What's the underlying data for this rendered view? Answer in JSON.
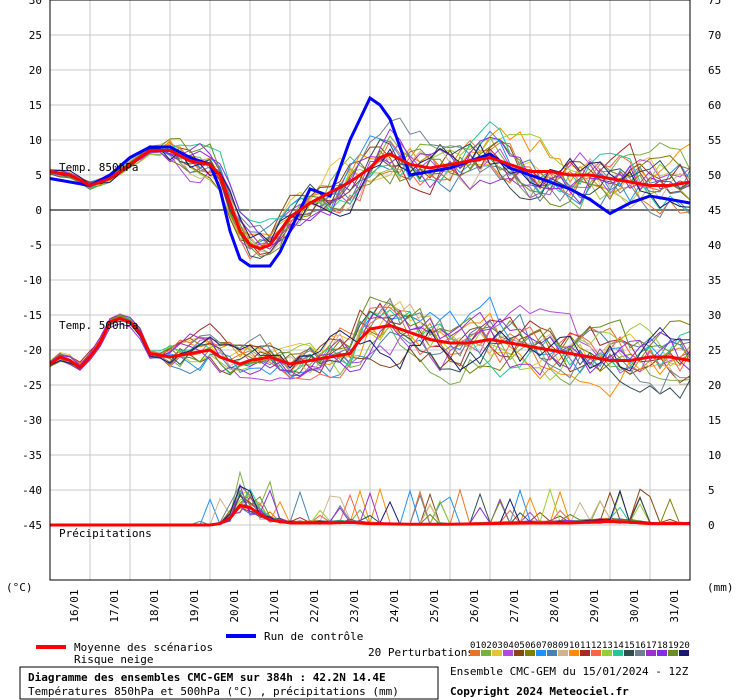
{
  "chart_data": {
    "type": "line",
    "title": "Diagramme des ensembles CMC-GEM sur 384h : 42.2N 14.4E",
    "subtitle": "Températures 850hPa et 500hPa (°C) , précipitations (mm)",
    "credit_line1": "Ensemble CMC-GEM du 15/01/2024 - 12Z",
    "credit_line2": "Copyright 2024 Meteociel.fr",
    "left_axis_unit": "(°C)",
    "right_axis_unit": "(mm)",
    "left_ticks": [
      30,
      25,
      20,
      15,
      10,
      5,
      0,
      -5,
      -10,
      -15,
      -20,
      -25,
      -30,
      -35,
      -40,
      -45
    ],
    "right_ticks": [
      75,
      70,
      65,
      60,
      55,
      50,
      45,
      40,
      35,
      30,
      25,
      20,
      15,
      10,
      5,
      0
    ],
    "ylim": [
      -45,
      30
    ],
    "x_days": [
      "16/01",
      "17/01",
      "18/01",
      "19/01",
      "20/01",
      "21/01",
      "22/01",
      "23/01",
      "24/01",
      "25/01",
      "26/01",
      "27/01",
      "28/01",
      "29/01",
      "30/01",
      "31/01"
    ],
    "x_hours_range": [
      0,
      384
    ],
    "section_labels": {
      "t850": "Temp. 850hPa",
      "t500": "Temp. 500hPa",
      "precip": "Précipitations"
    },
    "legend": {
      "mean": "Moyenne des scénarios",
      "snow_risk": "Risque neige",
      "control": "Run de contrôle",
      "perturbations": "20 Perturbations"
    },
    "perturbation_numbers": [
      "01",
      "02",
      "03",
      "04",
      "05",
      "06",
      "07",
      "08",
      "09",
      "10",
      "11",
      "12",
      "13",
      "14",
      "15",
      "16",
      "17",
      "18",
      "19",
      "20"
    ],
    "perturbation_colors": [
      "#e8732a",
      "#76b043",
      "#e8c23a",
      "#b04ae0",
      "#8b4513",
      "#808000",
      "#1e90ff",
      "#4682b4",
      "#d2b48c",
      "#ff8c00",
      "#a52a2a",
      "#ff6347",
      "#9acd32",
      "#20c997",
      "#2f4f4f",
      "#708090",
      "#9932cc",
      "#8a2be2",
      "#6b8e23",
      "#191970"
    ],
    "mean_color": "#ff0000",
    "control_color": "#0000ff",
    "series": [
      {
        "name": "Moyenne des scénarios",
        "t850": [
          [
            0,
            5.5
          ],
          [
            12,
            5
          ],
          [
            24,
            3.5
          ],
          [
            36,
            4.5
          ],
          [
            48,
            6.5
          ],
          [
            60,
            8.5
          ],
          [
            72,
            8.5
          ],
          [
            84,
            7
          ],
          [
            96,
            6.5
          ],
          [
            102,
            5
          ],
          [
            108,
            1
          ],
          [
            114,
            -3
          ],
          [
            120,
            -5
          ],
          [
            126,
            -5.5
          ],
          [
            132,
            -5
          ],
          [
            138,
            -3
          ],
          [
            144,
            -1
          ],
          [
            156,
            1
          ],
          [
            168,
            2.5
          ],
          [
            180,
            4
          ],
          [
            192,
            6
          ],
          [
            198,
            7.5
          ],
          [
            204,
            8
          ],
          [
            216,
            6.5
          ],
          [
            228,
            6
          ],
          [
            240,
            6.5
          ],
          [
            252,
            7
          ],
          [
            264,
            7.5
          ],
          [
            276,
            6.5
          ],
          [
            288,
            5.5
          ],
          [
            300,
            5.5
          ],
          [
            312,
            5
          ],
          [
            324,
            5
          ],
          [
            336,
            4.5
          ],
          [
            348,
            4
          ],
          [
            360,
            3.5
          ],
          [
            372,
            3.5
          ],
          [
            384,
            4
          ]
        ],
        "t500": [
          [
            0,
            -22
          ],
          [
            6,
            -21
          ],
          [
            12,
            -21.5
          ],
          [
            18,
            -22.5
          ],
          [
            24,
            -21
          ],
          [
            30,
            -19
          ],
          [
            36,
            -16
          ],
          [
            42,
            -15.5
          ],
          [
            48,
            -16
          ],
          [
            54,
            -17.5
          ],
          [
            60,
            -20.5
          ],
          [
            72,
            -21
          ],
          [
            84,
            -20.5
          ],
          [
            96,
            -20
          ],
          [
            102,
            -21
          ],
          [
            108,
            -21.5
          ],
          [
            114,
            -22
          ],
          [
            120,
            -21.5
          ],
          [
            132,
            -21
          ],
          [
            144,
            -22
          ],
          [
            156,
            -21.5
          ],
          [
            168,
            -21
          ],
          [
            180,
            -20.5
          ],
          [
            186,
            -18.5
          ],
          [
            192,
            -17
          ],
          [
            204,
            -16.5
          ],
          [
            216,
            -17.5
          ],
          [
            228,
            -18.5
          ],
          [
            240,
            -19
          ],
          [
            252,
            -19
          ],
          [
            264,
            -18.5
          ],
          [
            276,
            -19
          ],
          [
            288,
            -19.5
          ],
          [
            300,
            -20
          ],
          [
            312,
            -20.5
          ],
          [
            324,
            -21
          ],
          [
            336,
            -21.5
          ],
          [
            348,
            -21.5
          ],
          [
            360,
            -21
          ],
          [
            372,
            -21
          ],
          [
            384,
            -21.5
          ]
        ],
        "precip": [
          [
            0,
            0
          ],
          [
            96,
            0
          ],
          [
            102,
            0.2
          ],
          [
            108,
            1
          ],
          [
            114,
            2.8
          ],
          [
            120,
            2.5
          ],
          [
            126,
            1.5
          ],
          [
            132,
            0.7
          ],
          [
            144,
            0.3
          ],
          [
            168,
            0.3
          ],
          [
            180,
            0.4
          ],
          [
            192,
            0.2
          ],
          [
            216,
            0.1
          ],
          [
            240,
            0.1
          ],
          [
            264,
            0.2
          ],
          [
            288,
            0.3
          ],
          [
            312,
            0.3
          ],
          [
            336,
            0.5
          ],
          [
            348,
            0.4
          ],
          [
            360,
            0.2
          ],
          [
            384,
            0.2
          ]
        ]
      },
      {
        "name": "Run de contrôle",
        "t850": [
          [
            0,
            4.5
          ],
          [
            12,
            4
          ],
          [
            24,
            3.5
          ],
          [
            36,
            5
          ],
          [
            48,
            7.5
          ],
          [
            60,
            9
          ],
          [
            72,
            9
          ],
          [
            84,
            7.5
          ],
          [
            96,
            6.5
          ],
          [
            102,
            3
          ],
          [
            108,
            -3
          ],
          [
            114,
            -7
          ],
          [
            120,
            -8
          ],
          [
            132,
            -8
          ],
          [
            138,
            -6
          ],
          [
            144,
            -3
          ],
          [
            156,
            3
          ],
          [
            168,
            2
          ],
          [
            180,
            10
          ],
          [
            192,
            16
          ],
          [
            198,
            15
          ],
          [
            204,
            13
          ],
          [
            216,
            5
          ],
          [
            228,
            5.5
          ],
          [
            240,
            6
          ],
          [
            252,
            7
          ],
          [
            264,
            8
          ],
          [
            276,
            6
          ],
          [
            288,
            5
          ],
          [
            300,
            4
          ],
          [
            312,
            3
          ],
          [
            324,
            1.5
          ],
          [
            336,
            -0.5
          ],
          [
            348,
            1
          ],
          [
            360,
            2
          ],
          [
            372,
            1.5
          ],
          [
            384,
            1
          ]
        ]
      }
    ]
  }
}
